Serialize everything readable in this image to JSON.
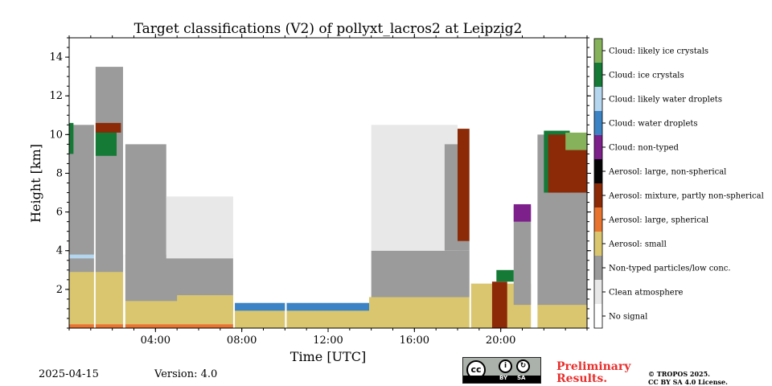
{
  "chart_data": {
    "type": "heatmap",
    "title": "Target classifications (V2) of pollyxt_lacros2 at Leipzig2",
    "xlabel": "Time [UTC]",
    "ylabel": "Height [km]",
    "xlim_hours": [
      0,
      24
    ],
    "ylim_km": [
      0,
      15
    ],
    "x_ticks": [
      {
        "value": 4,
        "label": "04:00"
      },
      {
        "value": 8,
        "label": "08:00"
      },
      {
        "value": 12,
        "label": "12:00"
      },
      {
        "value": 16,
        "label": "16:00"
      },
      {
        "value": 20,
        "label": "20:00"
      }
    ],
    "y_ticks": [
      {
        "value": 2,
        "label": "2"
      },
      {
        "value": 4,
        "label": "4"
      },
      {
        "value": 6,
        "label": "6"
      },
      {
        "value": 8,
        "label": "8"
      },
      {
        "value": 10,
        "label": "10"
      },
      {
        "value": 12,
        "label": "12"
      },
      {
        "value": 14,
        "label": "14"
      }
    ],
    "legend_position": "right colorbar",
    "classes": [
      {
        "label": "No signal",
        "color": "#ffffff"
      },
      {
        "label": "Clean atmosphere",
        "color": "#e8e8e8"
      },
      {
        "label": "Non-typed particles/low conc.",
        "color": "#9b9b9b"
      },
      {
        "label": "Aerosol: small",
        "color": "#d9c66f"
      },
      {
        "label": "Aerosol: large, spherical",
        "color": "#e8742f"
      },
      {
        "label": "Aerosol: mixture, partly non-spherical",
        "color": "#8c2a08"
      },
      {
        "label": "Aerosol: large, non-spherical",
        "color": "#050505"
      },
      {
        "label": "Cloud: non-typed",
        "color": "#7d208c"
      },
      {
        "label": "Cloud: water droplets",
        "color": "#3b83c4"
      },
      {
        "label": "Cloud: likely water droplets",
        "color": "#b4d6ee"
      },
      {
        "label": "Cloud: ice crystals",
        "color": "#147a36"
      },
      {
        "label": "Cloud: likely ice crystals",
        "color": "#86b25b"
      }
    ],
    "regions": [
      {
        "cls": 2,
        "t": [
          0,
          1.2
        ],
        "h": [
          3.7,
          10.5
        ]
      },
      {
        "cls": 3,
        "t": [
          0,
          2.6
        ],
        "h": [
          0.2,
          3.0
        ]
      },
      {
        "cls": 2,
        "t": [
          0,
          2.6
        ],
        "h": [
          2.9,
          3.8
        ]
      },
      {
        "cls": 2,
        "t": [
          2.6,
          7.6
        ],
        "h": [
          0.8,
          3.8
        ]
      },
      {
        "cls": 2,
        "t": [
          1.2,
          2.5
        ],
        "h": [
          3.7,
          13.5
        ]
      },
      {
        "cls": 2,
        "t": [
          2.6,
          4.5
        ],
        "h": [
          3.7,
          9.5
        ]
      },
      {
        "cls": 1,
        "t": [
          4.5,
          7.6
        ],
        "h": [
          3.6,
          6.8
        ]
      },
      {
        "cls": 3,
        "t": [
          2.6,
          7.6
        ],
        "h": [
          0.2,
          1.4
        ]
      },
      {
        "cls": 3,
        "t": [
          5.0,
          7.6
        ],
        "h": [
          0.8,
          1.7
        ]
      },
      {
        "cls": 4,
        "t": [
          0,
          10.0
        ],
        "h": [
          0.0,
          0.2
        ]
      },
      {
        "cls": 10,
        "t": [
          0,
          0.2
        ],
        "h": [
          9.0,
          10.6
        ]
      },
      {
        "cls": 10,
        "t": [
          1.2,
          2.2
        ],
        "h": [
          8.9,
          10.4
        ]
      },
      {
        "cls": 5,
        "t": [
          1.2,
          2.4
        ],
        "h": [
          10.1,
          10.6
        ]
      },
      {
        "cls": 9,
        "t": [
          0,
          1.2
        ],
        "h": [
          3.6,
          3.8
        ]
      },
      {
        "cls": 3,
        "t": [
          7.6,
          13.9
        ],
        "h": [
          0.0,
          1.0
        ]
      },
      {
        "cls": 8,
        "t": [
          7.6,
          13.9
        ],
        "h": [
          0.9,
          1.3
        ]
      },
      {
        "cls": 2,
        "t": [
          14.0,
          18.6
        ],
        "h": [
          1.0,
          4.0
        ]
      },
      {
        "cls": 1,
        "t": [
          14.0,
          18.0
        ],
        "h": [
          4.0,
          10.5
        ]
      },
      {
        "cls": 3,
        "t": [
          13.9,
          18.6
        ],
        "h": [
          0.0,
          1.6
        ]
      },
      {
        "cls": 2,
        "t": [
          17.4,
          18.6
        ],
        "h": [
          4.0,
          9.5
        ]
      },
      {
        "cls": 5,
        "t": [
          18.0,
          18.6
        ],
        "h": [
          4.5,
          10.3
        ]
      },
      {
        "cls": 3,
        "t": [
          18.6,
          21.4
        ],
        "h": [
          0.0,
          2.3
        ]
      },
      {
        "cls": 5,
        "t": [
          19.6,
          20.3
        ],
        "h": [
          0.0,
          2.4
        ]
      },
      {
        "cls": 2,
        "t": [
          20.6,
          21.4
        ],
        "h": [
          1.2,
          6.3
        ]
      },
      {
        "cls": 10,
        "t": [
          19.8,
          20.6
        ],
        "h": [
          2.4,
          3.0
        ]
      },
      {
        "cls": 7,
        "t": [
          20.6,
          21.4
        ],
        "h": [
          5.5,
          6.4
        ]
      },
      {
        "cls": 2,
        "t": [
          21.7,
          24.0
        ],
        "h": [
          1.0,
          10.0
        ]
      },
      {
        "cls": 3,
        "t": [
          21.7,
          24.0
        ],
        "h": [
          0.0,
          1.2
        ]
      },
      {
        "cls": 10,
        "t": [
          22.0,
          23.2
        ],
        "h": [
          7.0,
          10.2
        ]
      },
      {
        "cls": 5,
        "t": [
          22.2,
          24.0
        ],
        "h": [
          7.0,
          10.0
        ]
      },
      {
        "cls": 11,
        "t": [
          23.0,
          24.0
        ],
        "h": [
          9.2,
          10.1
        ]
      }
    ],
    "gaps": [
      [
        1.15,
        1.2
      ],
      [
        2.5,
        2.6
      ],
      [
        7.6,
        7.68
      ],
      [
        10.0,
        10.08
      ],
      [
        18.55,
        18.6
      ],
      [
        21.45,
        21.7
      ]
    ]
  },
  "footer": {
    "date": "2025-04-15",
    "version": "Version: 4.0",
    "preliminary_line1": "Preliminary",
    "preliminary_line2": "Results.",
    "copyright_line1": "© TROPOS 2025.",
    "copyright_line2": "CC BY SA 4.0 License.",
    "badge_cc": "cc",
    "badge_by": "BY",
    "badge_sa": "SA"
  }
}
